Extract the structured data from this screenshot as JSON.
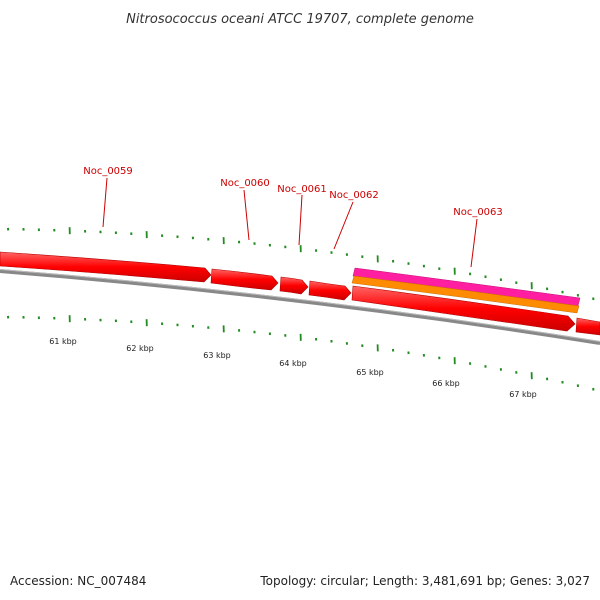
{
  "title": "Nitrosococcus oceani ATCC 19707, complete genome",
  "accession": "Accession: NC_007484",
  "topology": "Topology: circular; Length: 3,481,691 bp; Genes: 3,027",
  "genes": [
    {
      "name": "Noc_0059"
    },
    {
      "name": "Noc_0060"
    },
    {
      "name": "Noc_0061"
    },
    {
      "name": "Noc_0062"
    },
    {
      "name": "Noc_0063"
    }
  ],
  "kbp_labels": [
    "61 kbp",
    "62 kbp",
    "63 kbp",
    "64 kbp",
    "65 kbp",
    "66 kbp",
    "67 kbp"
  ],
  "colors": {
    "gene": "#ff0000",
    "gene_dark": "#cc0000",
    "magenta": "#ff1fa0",
    "orange": "#ff8c00",
    "backbone": "#888888",
    "tick": "#228b22"
  }
}
